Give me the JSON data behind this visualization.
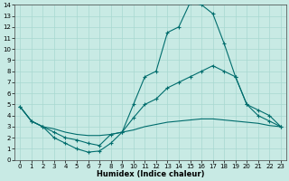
{
  "xlabel": "Humidex (Indice chaleur)",
  "ylabel": "",
  "bg_color": "#c8eae4",
  "line_color": "#006d6d",
  "grid_color": "#a8d8d0",
  "xlim": [
    -0.5,
    23.5
  ],
  "ylim": [
    0,
    14
  ],
  "xticks": [
    0,
    1,
    2,
    3,
    4,
    5,
    6,
    7,
    8,
    9,
    10,
    11,
    12,
    13,
    14,
    15,
    16,
    17,
    18,
    19,
    20,
    21,
    22,
    23
  ],
  "yticks": [
    0,
    1,
    2,
    3,
    4,
    5,
    6,
    7,
    8,
    9,
    10,
    11,
    12,
    13,
    14
  ],
  "line1_x": [
    0,
    1,
    2,
    3,
    4,
    5,
    6,
    7,
    8,
    9,
    10,
    11,
    12,
    13,
    14,
    15,
    16,
    17,
    18,
    19,
    20,
    21,
    22,
    23
  ],
  "line1_y": [
    4.8,
    3.5,
    3.0,
    2.0,
    1.5,
    1.0,
    0.7,
    0.8,
    1.5,
    2.5,
    5.0,
    7.5,
    8.0,
    11.5,
    12.0,
    14.2,
    14.0,
    13.2,
    10.5,
    7.5,
    5.0,
    4.0,
    3.5,
    3.0
  ],
  "line2_x": [
    0,
    1,
    2,
    3,
    4,
    5,
    6,
    7,
    8,
    9,
    10,
    11,
    12,
    13,
    14,
    15,
    16,
    17,
    18,
    19,
    20,
    21,
    22,
    23
  ],
  "line2_y": [
    4.8,
    3.5,
    3.0,
    2.5,
    2.0,
    1.8,
    1.5,
    1.3,
    2.3,
    2.5,
    3.8,
    5.0,
    5.5,
    6.5,
    7.0,
    7.5,
    8.0,
    8.5,
    8.0,
    7.5,
    5.0,
    4.5,
    4.0,
    3.0
  ],
  "line3_x": [
    0,
    1,
    2,
    3,
    4,
    5,
    6,
    7,
    8,
    9,
    10,
    11,
    12,
    13,
    14,
    15,
    16,
    17,
    18,
    19,
    20,
    21,
    22,
    23
  ],
  "line3_y": [
    4.8,
    3.5,
    3.0,
    2.8,
    2.5,
    2.3,
    2.2,
    2.2,
    2.3,
    2.5,
    2.7,
    3.0,
    3.2,
    3.4,
    3.5,
    3.6,
    3.7,
    3.7,
    3.6,
    3.5,
    3.4,
    3.3,
    3.1,
    3.0
  ],
  "xlabel_fontsize": 6,
  "tick_fontsize": 5
}
